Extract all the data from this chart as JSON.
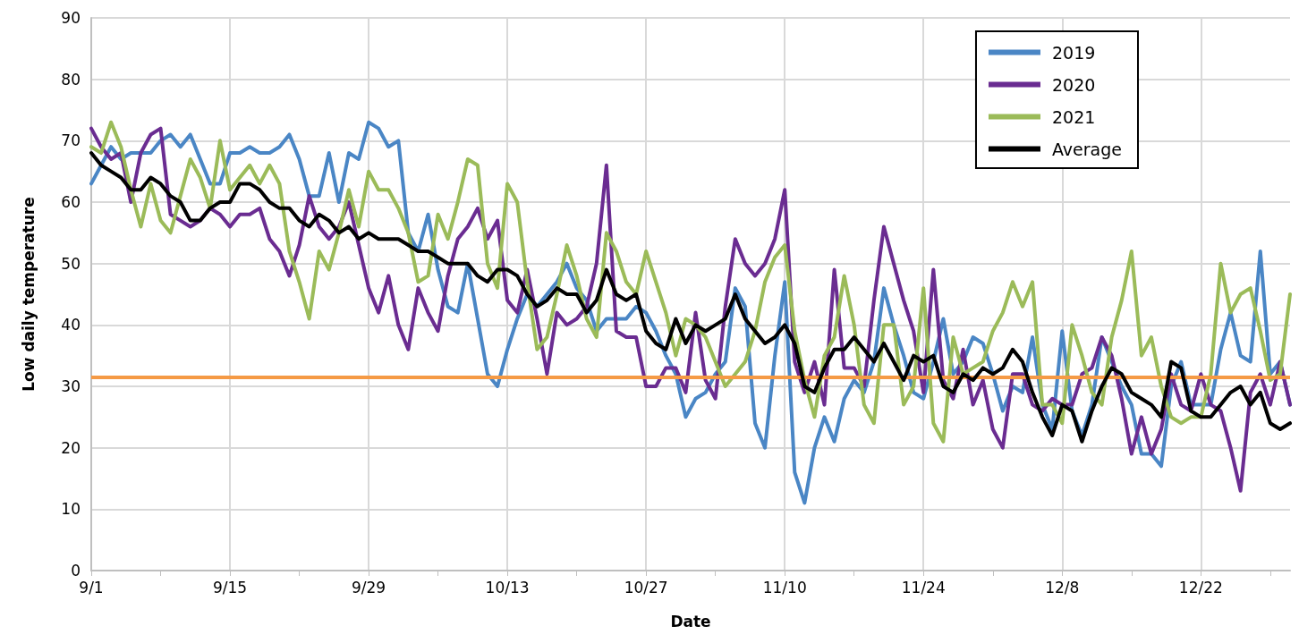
{
  "chart_data": {
    "type": "line",
    "xlabel": "Date",
    "ylabel": "Low daily temperature",
    "x": [
      "--09-01",
      "--09-02",
      "--09-03",
      "--09-04",
      "--09-05",
      "--09-06",
      "--09-07",
      "--09-08",
      "--09-09",
      "--09-10",
      "--09-11",
      "--09-12",
      "--09-13",
      "--09-14",
      "--09-15",
      "--09-16",
      "--09-17",
      "--09-18",
      "--09-19",
      "--09-20",
      "--09-21",
      "--09-22",
      "--09-23",
      "--09-24",
      "--09-25",
      "--09-26",
      "--09-27",
      "--09-28",
      "--09-29",
      "--09-30",
      "--10-01",
      "--10-02",
      "--10-03",
      "--10-04",
      "--10-05",
      "--10-06",
      "--10-07",
      "--10-08",
      "--10-09",
      "--10-10",
      "--10-11",
      "--10-12",
      "--10-13",
      "--10-14",
      "--10-15",
      "--10-16",
      "--10-17",
      "--10-18",
      "--10-19",
      "--10-20",
      "--10-21",
      "--10-22",
      "--10-23",
      "--10-24",
      "--10-25",
      "--10-26",
      "--10-27",
      "--10-28",
      "--10-29",
      "--10-30",
      "--10-31",
      "--11-01",
      "--11-02",
      "--11-03",
      "--11-04",
      "--11-05",
      "--11-06",
      "--11-07",
      "--11-08",
      "--11-09",
      "--11-10",
      "--11-11",
      "--11-12",
      "--11-13",
      "--11-14",
      "--11-15",
      "--11-16",
      "--11-17",
      "--11-18",
      "--11-19",
      "--11-20",
      "--11-21",
      "--11-22",
      "--11-23",
      "--11-24",
      "--11-25",
      "--11-26",
      "--11-27",
      "--11-28",
      "--11-29",
      "--11-30",
      "--12-01",
      "--12-02",
      "--12-03",
      "--12-04",
      "--12-05",
      "--12-06",
      "--12-07",
      "--12-08",
      "--12-09",
      "--12-10",
      "--12-11",
      "--12-12",
      "--12-13",
      "--12-14",
      "--12-15",
      "--12-16",
      "--12-17",
      "--12-18",
      "--12-19",
      "--12-20",
      "--12-21",
      "--12-22",
      "--12-23",
      "--12-24",
      "--12-25",
      "--12-26",
      "--12-27",
      "--12-28",
      "--12-29",
      "--12-30",
      "--12-31"
    ],
    "series": [
      {
        "name": "2019",
        "color": "#4a86c5",
        "values": [
          63,
          66,
          69,
          67,
          68,
          68,
          68,
          70,
          71,
          69,
          71,
          67,
          63,
          63,
          68,
          68,
          69,
          68,
          68,
          69,
          71,
          67,
          61,
          61,
          68,
          60,
          68,
          67,
          73,
          72,
          69,
          70,
          55,
          52,
          58,
          49,
          43,
          42,
          50,
          41,
          32,
          30,
          36,
          41,
          45,
          43,
          45,
          47,
          50,
          46,
          44,
          39,
          41,
          41,
          41,
          43,
          42,
          39,
          35,
          32,
          25,
          28,
          29,
          32,
          34,
          46,
          43,
          24,
          20,
          35,
          47,
          16,
          11,
          20,
          25,
          21,
          28,
          31,
          29,
          34,
          46,
          40,
          35,
          29,
          28,
          34,
          41,
          32,
          34,
          38,
          37,
          32,
          26,
          30,
          29,
          38,
          27,
          23,
          39,
          26,
          22,
          27,
          38,
          34,
          30,
          27,
          19,
          19,
          17,
          30,
          34,
          27,
          27,
          27,
          36,
          42,
          35,
          34,
          52,
          32,
          34,
          27
        ]
      },
      {
        "name": "2020",
        "color": "#6a2c91",
        "values": [
          72,
          69,
          67,
          68,
          60,
          68,
          71,
          72,
          58,
          57,
          56,
          57,
          59,
          58,
          56,
          58,
          58,
          59,
          54,
          52,
          48,
          53,
          61,
          56,
          54,
          56,
          60,
          53,
          46,
          42,
          48,
          40,
          36,
          46,
          42,
          39,
          48,
          54,
          56,
          59,
          54,
          57,
          44,
          42,
          49,
          41,
          32,
          42,
          40,
          41,
          43,
          50,
          66,
          39,
          38,
          38,
          30,
          30,
          33,
          33,
          29,
          42,
          31,
          28,
          43,
          54,
          50,
          48,
          50,
          54,
          62,
          34,
          29,
          34,
          27,
          49,
          33,
          33,
          30,
          44,
          56,
          50,
          44,
          39,
          29,
          49,
          31,
          28,
          36,
          27,
          31,
          23,
          20,
          32,
          32,
          27,
          26,
          28,
          27,
          27,
          32,
          33,
          38,
          35,
          28,
          19,
          25,
          19,
          23,
          32,
          27,
          26,
          32,
          27,
          26,
          20,
          13,
          29,
          32,
          27,
          34,
          27
        ]
      },
      {
        "name": "2021",
        "color": "#9bbb59",
        "values": [
          69,
          68,
          73,
          69,
          62,
          56,
          63,
          57,
          55,
          61,
          67,
          64,
          59,
          70,
          62,
          64,
          66,
          63,
          66,
          63,
          52,
          47,
          41,
          52,
          49,
          55,
          62,
          56,
          65,
          62,
          62,
          59,
          55,
          47,
          48,
          58,
          54,
          60,
          67,
          66,
          50,
          46,
          63,
          60,
          47,
          36,
          38,
          45,
          53,
          48,
          41,
          38,
          55,
          52,
          47,
          45,
          52,
          47,
          42,
          35,
          41,
          40,
          38,
          34,
          30,
          32,
          34,
          39,
          47,
          51,
          53,
          39,
          31,
          25,
          35,
          38,
          48,
          40,
          27,
          24,
          40,
          40,
          27,
          30,
          46,
          24,
          21,
          38,
          32,
          33,
          34,
          39,
          42,
          47,
          43,
          47,
          27,
          27,
          24,
          40,
          35,
          29,
          27,
          38,
          44,
          52,
          35,
          38,
          30,
          25,
          24,
          25,
          25,
          32,
          50,
          42,
          45,
          46,
          39,
          31,
          32,
          45
        ]
      },
      {
        "name": "Average",
        "color": "#000000",
        "values": [
          68,
          66,
          65,
          64,
          62,
          62,
          64,
          63,
          61,
          60,
          57,
          57,
          59,
          60,
          60,
          63,
          63,
          62,
          60,
          59,
          59,
          57,
          56,
          58,
          57,
          55,
          56,
          54,
          55,
          54,
          54,
          54,
          53,
          52,
          52,
          51,
          50,
          50,
          50,
          48,
          47,
          49,
          49,
          48,
          45,
          43,
          44,
          46,
          45,
          45,
          42,
          44,
          49,
          45,
          44,
          45,
          39,
          37,
          36,
          41,
          37,
          40,
          39,
          40,
          41,
          45,
          41,
          39,
          37,
          38,
          40,
          37,
          30,
          29,
          33,
          36,
          36,
          38,
          36,
          34,
          37,
          34,
          31,
          35,
          34,
          35,
          30,
          29,
          32,
          31,
          33,
          32,
          33,
          36,
          34,
          29,
          25,
          22,
          27,
          26,
          21,
          26,
          30,
          33,
          32,
          29,
          28,
          27,
          25,
          34,
          33,
          26,
          25,
          25,
          27,
          29,
          30,
          27,
          29,
          24,
          23,
          24
        ]
      }
    ],
    "ref_lines": [
      {
        "axis": "y",
        "value": 31.5,
        "color": "#f59a45"
      }
    ],
    "xlim": [
      "--09-01",
      "--12-31"
    ],
    "xticks": [
      {
        "value": "--09-01",
        "label": "9/1"
      },
      {
        "value": "--09-08",
        "label": null
      },
      {
        "value": "--09-15",
        "label": "9/15"
      },
      {
        "value": "--09-22",
        "label": null
      },
      {
        "value": "--09-29",
        "label": "9/29"
      },
      {
        "value": "--10-06",
        "label": null
      },
      {
        "value": "--10-13",
        "label": "10/13"
      },
      {
        "value": "--10-20",
        "label": null
      },
      {
        "value": "--10-27",
        "label": "10/27"
      },
      {
        "value": "--11-03",
        "label": null
      },
      {
        "value": "--11-10",
        "label": "11/10"
      },
      {
        "value": "--11-17",
        "label": null
      },
      {
        "value": "--11-24",
        "label": "11/24"
      },
      {
        "value": "--12-01",
        "label": null
      },
      {
        "value": "--12-08",
        "label": "12/8"
      },
      {
        "value": "--12-15",
        "label": null
      },
      {
        "value": "--12-22",
        "label": "12/22"
      },
      {
        "value": "--12-29",
        "label": null
      }
    ],
    "ylim": [
      0,
      90
    ],
    "yticks": [
      0,
      10,
      20,
      30,
      40,
      50,
      60,
      70,
      80,
      90
    ],
    "grid": true,
    "legend": "top right",
    "marker": "none",
    "line_style": "solid"
  }
}
